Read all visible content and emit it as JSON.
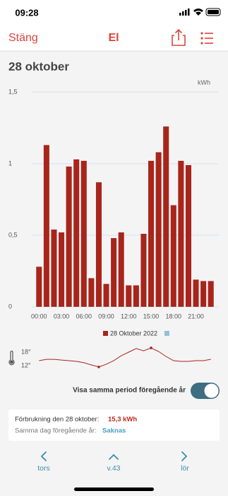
{
  "status_bar": {
    "time": "09:28"
  },
  "nav": {
    "close": "Stäng",
    "title": "El"
  },
  "heading": "28 oktober",
  "chart_data": [
    {
      "type": "bar",
      "unit_label": "kWh",
      "categories": [
        "00:00",
        null,
        null,
        "03:00",
        null,
        null,
        "06:00",
        null,
        null,
        "09:00",
        null,
        null,
        "12:00",
        null,
        null,
        "15:00",
        null,
        null,
        "18:00",
        null,
        null,
        "21:00",
        null,
        null
      ],
      "series": [
        {
          "name": "28 Oktober 2022",
          "color": "#a8251c",
          "values": [
            0.28,
            1.13,
            0.54,
            0.52,
            0.98,
            1.03,
            1.02,
            0.2,
            0.87,
            0.16,
            0.48,
            0.52,
            0.15,
            0.15,
            0.51,
            1.02,
            1.08,
            1.26,
            0.71,
            1.02,
            0.99,
            0.19,
            0.18,
            0.18
          ]
        }
      ],
      "ylim": [
        0,
        1.5
      ],
      "yticks": [
        0,
        {
          "value": 0.5,
          "label": "0,5"
        },
        1,
        {
          "value": 1.5,
          "label": "1,5"
        }
      ],
      "grid": true
    },
    {
      "type": "line",
      "color": "#a8251c",
      "values": [
        14.2,
        14.8,
        14.8,
        14.5,
        14.2,
        13.9,
        13.3,
        12.3,
        11.4,
        12.6,
        14.2,
        16.4,
        18.0,
        19.6,
        18.6,
        19.9,
        18.3,
        16.1,
        14.2,
        13.9,
        13.9,
        14.2,
        14.2,
        14.8
      ],
      "ylim": [
        10,
        21
      ],
      "yticks": [
        {
          "value": 18,
          "label": "18°"
        },
        {
          "value": 12,
          "label": "12°"
        }
      ]
    }
  ],
  "toggle_label": "Visa samma period föregående år",
  "summary": {
    "consumption_label": "Förbrukning den 28 oktober:",
    "consumption_value": "15,3 kWh",
    "previous_label": "Samma dag föregående år:",
    "previous_value": "Saknas"
  },
  "bottom_nav": {
    "prev": "tors",
    "week": "v.43",
    "next": "lör"
  }
}
